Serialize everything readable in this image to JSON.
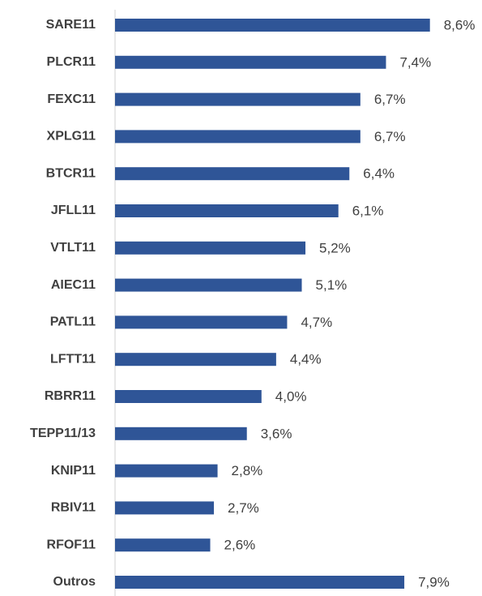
{
  "chart_data": {
    "type": "bar",
    "orientation": "horizontal",
    "categories": [
      "SARE11",
      "PLCR11",
      "FEXC11",
      "XPLG11",
      "BTCR11",
      "JFLL11",
      "VTLT11",
      "AIEC11",
      "PATL11",
      "LFTT11",
      "RBRR11",
      "TEPP11/13",
      "KNIP11",
      "RBIV11",
      "RFOF11",
      "Outros"
    ],
    "values": [
      8.6,
      7.4,
      6.7,
      6.7,
      6.4,
      6.1,
      5.2,
      5.1,
      4.7,
      4.4,
      4.0,
      3.6,
      2.8,
      2.7,
      2.6,
      7.9
    ],
    "value_labels": [
      "8,6%",
      "7,4%",
      "6,7%",
      "6,7%",
      "6,4%",
      "6,1%",
      "5,2%",
      "5,1%",
      "4,7%",
      "4,4%",
      "4,0%",
      "3,6%",
      "2,8%",
      "2,7%",
      "2,6%",
      "7,9%"
    ],
    "color": "#2f5597",
    "xlim": [
      0,
      10
    ]
  }
}
